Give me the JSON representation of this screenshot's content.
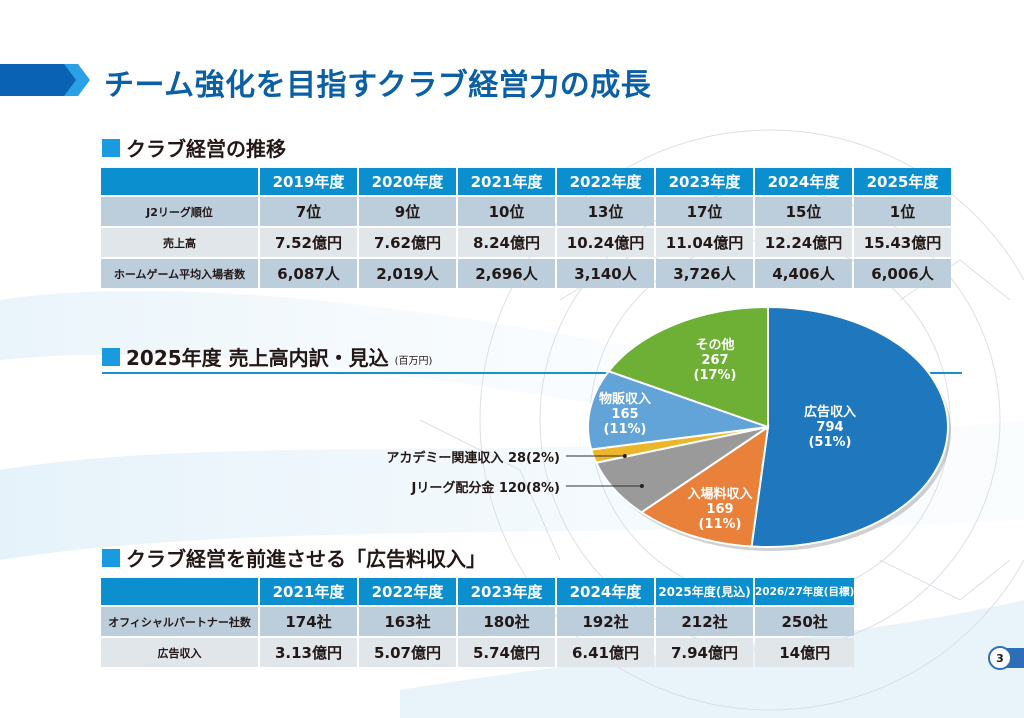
{
  "page": {
    "title": "チーム強化を目指すクラブ経営力の成長",
    "page_number": "3"
  },
  "section1": {
    "heading": "クラブ経営の推移",
    "columns": [
      "2019年度",
      "2020年度",
      "2021年度",
      "2022年度",
      "2023年度",
      "2024年度",
      "2025年度"
    ],
    "rows": [
      {
        "label": "J2リーグ順位",
        "values": [
          "7位",
          "9位",
          "10位",
          "13位",
          "17位",
          "15位",
          "1位"
        ]
      },
      {
        "label": "売上高",
        "values": [
          "7.52億円",
          "7.62億円",
          "8.24億円",
          "10.24億円",
          "11.04億円",
          "12.24億円",
          "15.43億円"
        ]
      },
      {
        "label": "ホームゲーム平均入場者数",
        "values": [
          "6,087人",
          "2,019人",
          "2,696人",
          "3,140人",
          "3,726人",
          "4,406人",
          "6,006人"
        ]
      }
    ]
  },
  "section2": {
    "heading": "2025年度 売上高内訳・見込",
    "unit": "(百万円)",
    "callouts": {
      "academy": "アカデミー関連収入 28(2%)",
      "jleague": "Jリーグ配分金 120(8%)"
    }
  },
  "chart_data": {
    "type": "pie",
    "title": "2025年度 売上高内訳・見込",
    "unit": "百万円",
    "start_angle": "12 o'clock",
    "direction": "clockwise",
    "slices": [
      {
        "label": "広告収入",
        "value": 794,
        "percent": "51%",
        "color": "#1f78be"
      },
      {
        "label": "入場料収入",
        "value": 169,
        "percent": "11%",
        "color": "#e9813a"
      },
      {
        "label": "Jリーグ配分金",
        "value": 120,
        "percent": "8%",
        "color": "#9a9a9a"
      },
      {
        "label": "アカデミー関連収入",
        "value": 28,
        "percent": "2%",
        "color": "#ecb62c"
      },
      {
        "label": "物販収入",
        "value": 165,
        "percent": "11%",
        "color": "#62a3d8"
      },
      {
        "label": "その他",
        "value": 267,
        "percent": "17%",
        "color": "#6eb035"
      }
    ],
    "inline_labels": [
      {
        "name": "広告収入",
        "value": "794",
        "percent": "(51%)"
      },
      {
        "name": "入場料収入",
        "value": "169",
        "percent": "(11%)"
      },
      {
        "name": "物販収入",
        "value": "165",
        "percent": "(11%)"
      },
      {
        "name": "その他",
        "value": "267",
        "percent": "(17%)"
      }
    ]
  },
  "section3": {
    "heading": "クラブ経営を前進させる「広告料収入」",
    "columns": [
      "2021年度",
      "2022年度",
      "2023年度",
      "2024年度",
      "2025年度(見込)",
      "2026/27年度(目標)"
    ],
    "rows": [
      {
        "label": "オフィシャルパートナー社数",
        "values": [
          "174社",
          "163社",
          "180社",
          "192社",
          "212社",
          "250社"
        ]
      },
      {
        "label": "広告収入",
        "values": [
          "3.13億円",
          "5.07億円",
          "5.74億円",
          "6.41億円",
          "7.94億円",
          "14億円"
        ]
      }
    ]
  }
}
